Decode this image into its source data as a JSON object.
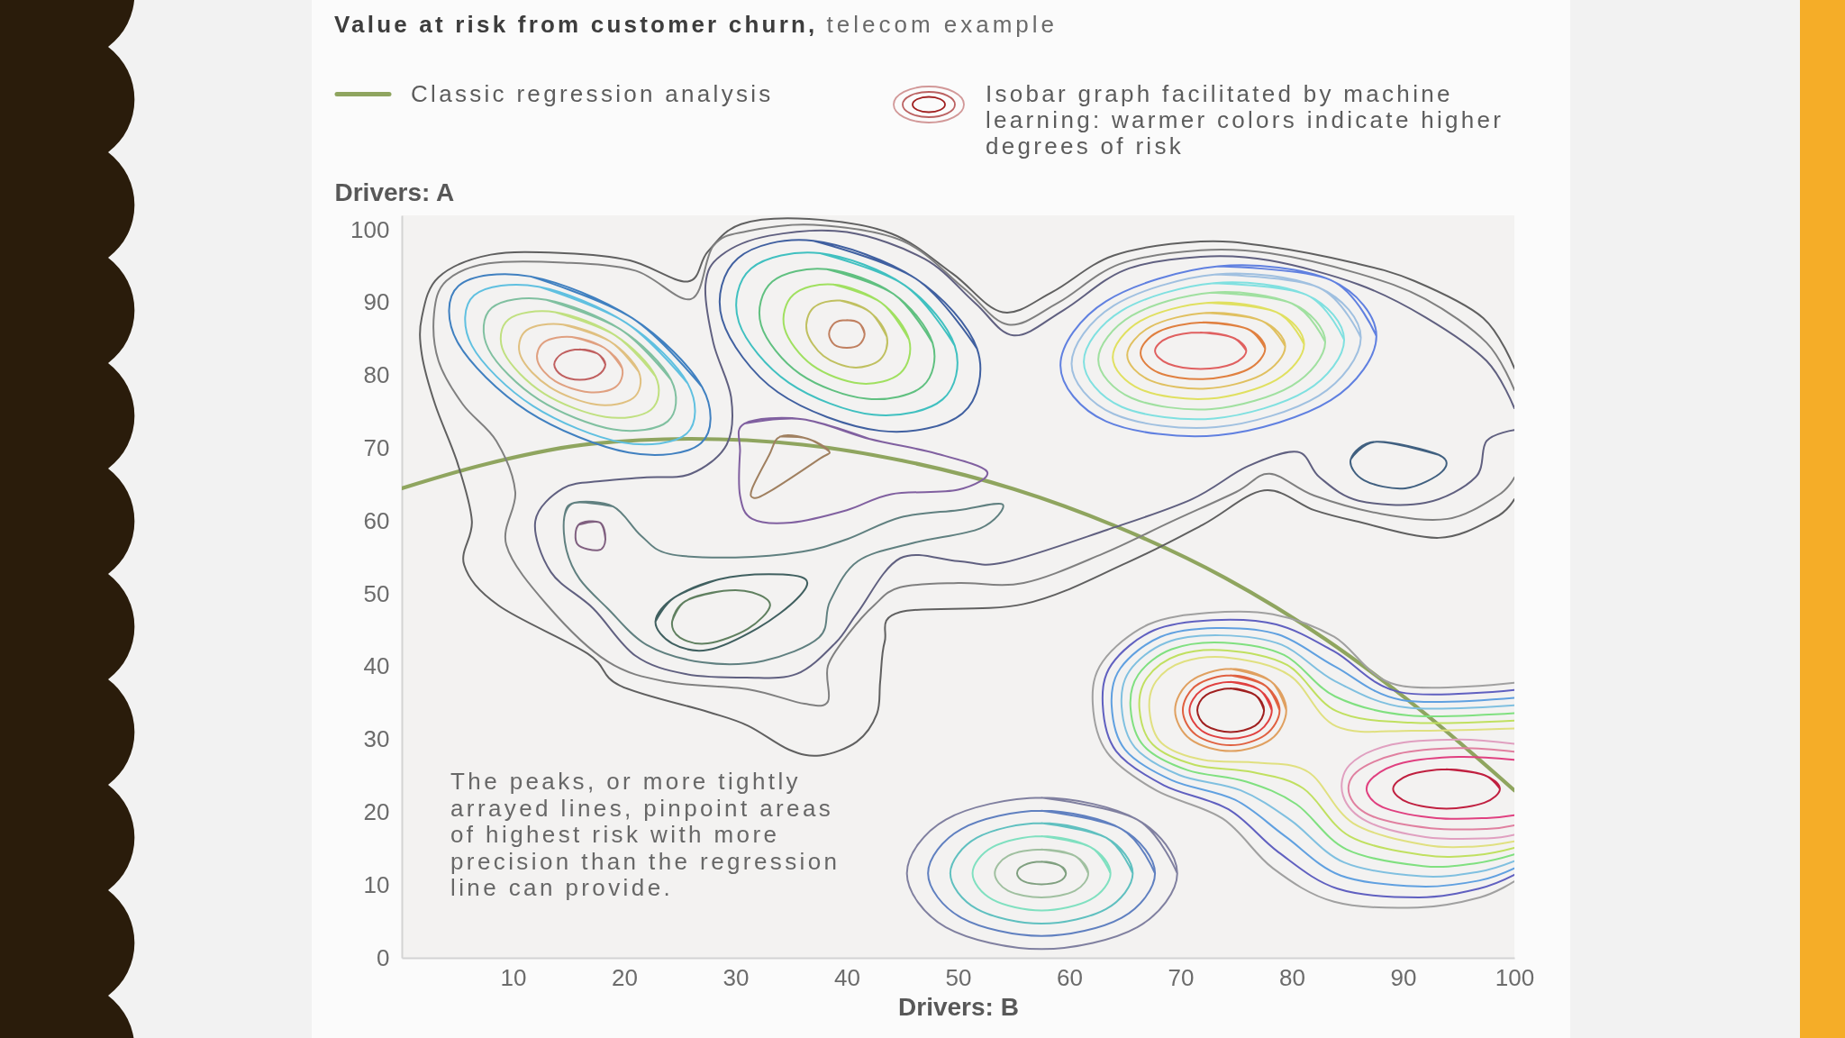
{
  "chart_data": {
    "type": "line",
    "title": "Value at risk from customer churn,",
    "subtitle": "telecom example",
    "xlabel": "Drivers: B",
    "ylabel": "Drivers: A",
    "annotations": [
      "The peaks, or more tightly arrayed lines, pinpoint areas of highest risk with more precision than the regression line can provide."
    ],
    "xlim": [
      0,
      100
    ],
    "ylim": [
      0,
      102
    ],
    "xticks": [
      10,
      20,
      30,
      40,
      50,
      60,
      70,
      80,
      90,
      100
    ],
    "yticks": [
      0,
      10,
      20,
      30,
      40,
      50,
      60,
      70,
      80,
      90,
      100
    ],
    "legend": "top",
    "series": [
      {
        "name": "Classic regression analysis",
        "color": "#8fa55f",
        "x": [
          0,
          8,
          17,
          26,
          36,
          45,
          55,
          64,
          74,
          83,
          92,
          100
        ],
        "values": [
          64.5,
          68,
          70.6,
          71.3,
          70.5,
          68.3,
          64.4,
          59.4,
          52.2,
          43.8,
          33.5,
          23
        ]
      },
      {
        "name": "Isobar graph facilitated by machine learning: warmer colors indicate higher degrees of risk",
        "color": "#a02020",
        "x": [
          77.5,
          76.7,
          74.5,
          72.3,
          71.5,
          72.3,
          74.5,
          76.7,
          77.5
        ],
        "values": [
          34,
          36.1,
          37,
          36.1,
          34,
          31.9,
          31,
          31.9,
          34
        ]
      },
      {
        "color": "#e04040",
        "x": [
          78.2,
          77.1,
          74.5,
          71.9,
          70.8,
          71.9,
          74.5,
          77.1,
          78.2
        ],
        "values": [
          34,
          36.8,
          37.9,
          36.8,
          34,
          31.2,
          30.1,
          31.2,
          34
        ]
      },
      {
        "color": "#e06040",
        "x": [
          78.9,
          77.6,
          74.5,
          71.4,
          70.2,
          71.4,
          74.5,
          77.6,
          78.9
        ],
        "values": [
          34,
          37.4,
          38.8,
          37.4,
          34,
          30.6,
          29.2,
          30.6,
          34
        ]
      },
      {
        "color": "#e0a060",
        "x": [
          79.5,
          78.1,
          74.5,
          70.9,
          69.5,
          70.9,
          74.5,
          78.1,
          79.5
        ],
        "values": [
          34,
          38,
          39.7,
          38,
          34,
          30,
          28.4,
          30,
          34
        ]
      },
      {
        "color": "#c02040",
        "x": [
          98.7,
          97.3,
          93.9,
          90.5,
          89.1,
          90.5,
          93.9,
          97.3,
          98.7
        ],
        "values": [
          23.2,
          25.1,
          25.9,
          25.1,
          23.2,
          21.3,
          20.5,
          21.3,
          23.2
        ]
      },
      {
        "color": "#e04080",
        "x": [
          100,
          95,
          90,
          87.3,
          86.8,
          88.5,
          93,
          97.5,
          100
        ],
        "values": [
          27.2,
          27.6,
          26.8,
          24.8,
          22.6,
          20.5,
          19.2,
          19.2,
          19.6
        ]
      },
      {
        "color": "#e080a0",
        "x": [
          100,
          95,
          89.5,
          85.8,
          85.2,
          87.3,
          92.5,
          97.5,
          100
        ],
        "values": [
          28.3,
          28.8,
          28,
          25.5,
          22.3,
          19.4,
          17.8,
          17.7,
          18.2
        ]
      },
      {
        "color": "#e0a0c0",
        "x": [
          100,
          95,
          89,
          85.2,
          84.6,
          86.8,
          92,
          97.5,
          100
        ],
        "values": [
          29.4,
          30,
          29.3,
          26.5,
          22.3,
          18.7,
          16.6,
          16.4,
          16.9
        ]
      },
      {
        "color": "#e0e080",
        "x": [
          100,
          91,
          84,
          79.8,
          74.5,
          70.3,
          67.8,
          67.2,
          68.3,
          72,
          77,
          81.5,
          85.5,
          92,
          96.5,
          100
        ],
        "values": [
          31.5,
          31.2,
          31.8,
          38.8,
          41.2,
          40.7,
          38,
          34,
          29.5,
          27.2,
          26.8,
          25.5,
          18.5,
          15.5,
          15.3,
          16
        ]
      },
      {
        "color": "#c0e060",
        "x": [
          100,
          90.7,
          84,
          79.6,
          74.2,
          69.8,
          67,
          66.3,
          67.5,
          71.3,
          76.5,
          81,
          85.2,
          91.9,
          96.6,
          100
        ],
        "values": [
          32.6,
          32.3,
          33.9,
          40.2,
          42.2,
          41.6,
          38.5,
          34.2,
          29.3,
          26.5,
          25.5,
          23.3,
          16.7,
          14.1,
          14.1,
          15.1
        ]
      },
      {
        "color": "#80e080",
        "x": [
          100,
          90.5,
          83.9,
          79.3,
          73.9,
          69.2,
          66.2,
          65.5,
          66.7,
          70.6,
          75.9,
          80.4,
          84.9,
          91.8,
          96.6,
          100
        ],
        "values": [
          33.6,
          33.3,
          35.9,
          41.6,
          43.3,
          42.4,
          38.9,
          34.3,
          29.1,
          25.8,
          24.2,
          21.1,
          14.9,
          12.6,
          13,
          14.2
        ]
      },
      {
        "color": "#80c0e0",
        "x": [
          100,
          90.2,
          83.9,
          79.1,
          73.6,
          68.7,
          65.4,
          64.7,
          65.9,
          69.9,
          75.4,
          79.9,
          84.7,
          91.7,
          96.7,
          100
        ],
        "values": [
          34.7,
          34.4,
          38,
          43,
          44.3,
          43.3,
          39.4,
          34.5,
          28.9,
          25.1,
          23,
          18.9,
          13.1,
          11.2,
          11.8,
          13.3
        ]
      },
      {
        "color": "#60a0e0",
        "x": [
          100,
          89.9,
          83.9,
          78.8,
          73.2,
          68.2,
          64.6,
          63.8,
          65,
          69.2,
          74.9,
          79.4,
          84.4,
          91.5,
          96.8,
          100
        ],
        "values": [
          35.7,
          35.4,
          40,
          44.4,
          45.3,
          44.1,
          39.8,
          34.7,
          28.6,
          24.4,
          21.7,
          16.7,
          11.3,
          9.8,
          10.6,
          12.3
        ]
      },
      {
        "color": "#6060c0",
        "x": [
          100,
          89.7,
          83.8,
          78.6,
          72.9,
          67.6,
          63.8,
          63,
          64.2,
          68.5,
          74.3,
          78.8,
          84.1,
          91.4,
          96.8,
          100
        ],
        "values": [
          36.8,
          36.5,
          42.1,
          45.8,
          46.4,
          45,
          40.3,
          34.8,
          28.4,
          23.7,
          20.4,
          14.5,
          9.5,
          8.3,
          9.5,
          11.4
        ]
      },
      {
        "color": "#a0a0a0",
        "x": [
          100,
          89.4,
          83.8,
          78.3,
          72.6,
          67.1,
          63,
          62.1,
          63.4,
          67.8,
          73.8,
          78.3,
          83.8,
          91.3,
          96.9,
          100
        ],
        "values": [
          37.8,
          37.5,
          44.1,
          47.2,
          47.4,
          45.8,
          40.7,
          35,
          28.2,
          23,
          19.1,
          12.3,
          7.7,
          6.9,
          8.3,
          10.5
        ]
      },
      {
        "color": "#80a080",
        "x": [
          59.7,
          59.1,
          57.5,
          55.9,
          55.3,
          55.9,
          57.5,
          59.1,
          59.7
        ],
        "values": [
          11.6,
          12.7,
          13.2,
          12.7,
          11.6,
          10.5,
          10.1,
          10.5,
          11.6
        ]
      },
      {
        "color": "#a0c0a0",
        "x": [
          61.7,
          60.5,
          57.5,
          54.5,
          53.3,
          54.5,
          57.5,
          60.5,
          61.7
        ],
        "values": [
          11.6,
          14,
          14.9,
          14,
          11.6,
          9.2,
          8.3,
          9.2,
          11.6
        ]
      },
      {
        "color": "#80e0c0",
        "x": [
          63.7,
          61.9,
          57.5,
          53.1,
          51.3,
          53.1,
          57.5,
          61.9,
          63.7
        ],
        "values": [
          11.6,
          15.2,
          16.7,
          15.2,
          11.6,
          8,
          6.5,
          8,
          11.6
        ]
      },
      {
        "color": "#60c0c0",
        "x": [
          65.7,
          63.3,
          57.5,
          51.7,
          49.3,
          51.7,
          57.5,
          63.3,
          65.7
        ],
        "values": [
          11.6,
          16.5,
          18.5,
          16.5,
          11.6,
          6.7,
          4.7,
          6.7,
          11.6
        ]
      },
      {
        "color": "#6080c0",
        "x": [
          67.7,
          64.7,
          57.5,
          50.3,
          47.3,
          50.3,
          57.5,
          64.7,
          67.7
        ],
        "values": [
          11.6,
          17.7,
          20.2,
          17.7,
          11.6,
          5.5,
          3,
          5.5,
          11.6
        ]
      },
      {
        "color": "#8080a0",
        "x": [
          69.7,
          66.1,
          57.5,
          48.9,
          45.4,
          48.9,
          57.5,
          66.1,
          69.7
        ],
        "values": [
          11.6,
          19,
          22,
          19,
          11.6,
          4.2,
          1.2,
          4.2,
          11.6
        ]
      },
      {
        "color": "#c06060",
        "x": [
          18.3,
          17.6,
          16,
          14.4,
          13.7,
          14.4,
          16,
          17.6,
          18.3
        ],
        "values": [
          81.5,
          83,
          83.6,
          83,
          81.5,
          80,
          79.4,
          80,
          81.5
        ]
      },
      {
        "color": "#e0a080",
        "x": [
          19.8,
          18.2,
          15.3,
          12.8,
          12.2,
          13.8,
          16.8,
          19.2,
          19.8
        ],
        "values": [
          81,
          83.8,
          85.3,
          84.6,
          82,
          79.2,
          77.7,
          78.4,
          81
        ]
      },
      {
        "color": "#e0c080",
        "x": [
          21.3,
          18.7,
          14.5,
          11.2,
          10.7,
          13.3,
          17.5,
          20.8,
          21.3
        ],
        "values": [
          80.5,
          84.7,
          87,
          86.2,
          82.6,
          78.4,
          76,
          76.9,
          80.5
        ]
      },
      {
        "color": "#c0e080",
        "x": [
          22.8,
          19.2,
          13.8,
          9.6,
          9.2,
          12.8,
          18.3,
          22.4,
          22.8
        ],
        "values": [
          79.9,
          85.5,
          88.7,
          87.7,
          83.1,
          77.5,
          74.3,
          75.3,
          79.9
        ]
      },
      {
        "color": "#80c0a0",
        "x": [
          24.2,
          19.7,
          13,
          8.1,
          7.8,
          12.3,
          19,
          23.9,
          24.2
        ],
        "values": [
          79.4,
          86.3,
          90.4,
          89.3,
          83.6,
          76.7,
          72.6,
          73.7,
          79.4
        ]
      },
      {
        "color": "#60c0e0",
        "x": [
          25.7,
          20.2,
          12.3,
          6.5,
          6.3,
          11.8,
          19.8,
          25.6,
          25.7
        ],
        "values": [
          78.9,
          87.2,
          92.2,
          91,
          84.1,
          75.8,
          70.8,
          72,
          78.9
        ]
      },
      {
        "color": "#4080c0",
        "x": [
          27,
          20.7,
          11.6,
          5.1,
          5,
          11.3,
          20.4,
          26.9,
          27
        ],
        "values": [
          78.4,
          87.9,
          93.6,
          92.3,
          84.6,
          75.1,
          69.4,
          70.7,
          78.4
        ]
      },
      {
        "color": "#c08060",
        "x": [
          41.6,
          41.1,
          40,
          38.9,
          38.4,
          38.9,
          40,
          41.1,
          41.6
        ],
        "values": [
          85.7,
          87.2,
          87.6,
          87.2,
          85.7,
          84.2,
          83.8,
          84.2,
          85.7
        ]
      },
      {
        "color": "#c0c060",
        "x": [
          43.6,
          42.1,
          39.4,
          37,
          36.4,
          37.9,
          40.6,
          43,
          43.6
        ],
        "values": [
          85.3,
          88.7,
          90.3,
          89.3,
          86.1,
          82.7,
          81.1,
          82.2,
          85.3
        ]
      },
      {
        "color": "#a0e060",
        "x": [
          45.6,
          43.1,
          38.8,
          35.2,
          34.4,
          36.9,
          41.2,
          44.8,
          45.6
        ],
        "values": [
          84.9,
          90,
          92.5,
          91.1,
          86.5,
          81.4,
          78.9,
          80.3,
          84.9
        ]
      },
      {
        "color": "#60c080",
        "x": [
          47.7,
          44.2,
          38.2,
          33.3,
          32.3,
          35.8,
          41.8,
          46.8,
          47.7
        ],
        "values": [
          84.5,
          91.2,
          94.6,
          92.9,
          86.9,
          80.2,
          76.8,
          78.5,
          84.5
        ]
      },
      {
        "color": "#40c0c0",
        "x": [
          49.7,
          45.2,
          37.6,
          31.4,
          30.3,
          34.8,
          42.4,
          48.6,
          49.7
        ],
        "values": [
          84.1,
          92.4,
          96.8,
          94.7,
          87.3,
          79,
          74.6,
          76.7,
          84.1
        ]
      },
      {
        "color": "#4060a0",
        "x": [
          51.7,
          46.2,
          37,
          30.2,
          28.8,
          33.8,
          43,
          50.4,
          51.7
        ],
        "values": [
          83.7,
          93.3,
          98.5,
          96.1,
          87.7,
          77.7,
          72.4,
          74.8,
          83.7
        ]
      },
      {
        "color": "#e06060",
        "x": [
          75.9,
          74.7,
          71.8,
          68.9,
          67.7,
          68.9,
          71.8,
          74.7,
          75.9
        ],
        "values": [
          83.4,
          85.2,
          85.9,
          85.2,
          83.4,
          81.6,
          80.9,
          81.6,
          83.4
        ]
      },
      {
        "color": "#e08040",
        "x": [
          77.6,
          76,
          72,
          68,
          66.4,
          68,
          72,
          76,
          77.6
        ],
        "values": [
          83.7,
          86.4,
          87.3,
          86,
          83.1,
          80.4,
          79.5,
          80.8,
          83.7
        ]
      },
      {
        "color": "#e0c060",
        "x": [
          79.4,
          77.3,
          72.3,
          67.3,
          65.2,
          67.3,
          72.3,
          77.3,
          79.4
        ],
        "values": [
          84,
          87.5,
          88.6,
          86.7,
          82.8,
          79.3,
          78.2,
          80.1,
          84
        ]
      },
      {
        "color": "#e0e060",
        "x": [
          81.1,
          78.6,
          72.5,
          66.4,
          63.9,
          66.4,
          72.5,
          78.6,
          81.1
        ],
        "values": [
          84.3,
          88.7,
          90,
          87.5,
          82.5,
          78.1,
          76.8,
          79.4,
          84.3
        ]
      },
      {
        "color": "#a0e0a0",
        "x": [
          83,
          80,
          72.8,
          65.6,
          62.6,
          65.6,
          72.8,
          80,
          83
        ],
        "values": [
          84.6,
          89.9,
          91.4,
          88.2,
          82.2,
          76.9,
          75.4,
          78.6,
          84.6
        ]
      },
      {
        "color": "#80e0e0",
        "x": [
          84.7,
          81.3,
          73,
          64.7,
          61.3,
          64.7,
          73,
          81.3,
          84.7
        ],
        "values": [
          84.9,
          91.1,
          92.7,
          88.9,
          81.9,
          75.7,
          74.1,
          77.9,
          84.9
        ]
      },
      {
        "color": "#a0c0e0",
        "x": [
          86.2,
          82.4,
          73.2,
          64,
          60.2,
          64,
          73.2,
          82.4,
          86.2
        ],
        "values": [
          85.2,
          92.1,
          93.9,
          89.6,
          81.6,
          74.7,
          72.9,
          77.2,
          85.2
        ]
      },
      {
        "color": "#6080e0",
        "x": [
          87.6,
          83.5,
          73.4,
          63.3,
          59.2,
          63.3,
          73.4,
          83.5,
          87.6
        ],
        "values": [
          85.4,
          93.1,
          95,
          90.2,
          81.4,
          73.7,
          71.8,
          76.6,
          85.4
        ]
      },
      {
        "color": "#606060",
        "x": [
          100,
          97.2,
          91,
          85.5,
          78,
          71.8,
          64,
          58.5,
          54,
          49.5,
          44,
          36.6,
          30.5,
          27.5,
          25.7,
          20.5,
          14.6,
          8,
          3.3,
          1.8,
          1.8,
          3,
          5,
          6.3,
          5.6,
          8.7,
          16.7,
          19.6,
          27.5,
          31.1,
          34.8,
          37.6,
          40.9,
          42.7,
          43,
          43.4,
          44.8,
          55.9,
          65.2,
          72,
          77.5,
          82,
          85.7,
          93.2,
          98.3,
          100
        ],
        "values": [
          81,
          87.9,
          93,
          95.5,
          97.7,
          98.4,
          96.5,
          91.5,
          88.7,
          94,
          99.5,
          101.5,
          100.8,
          97,
          92.9,
          95.8,
          96.8,
          96.6,
          93.5,
          88,
          82.9,
          76,
          68,
          60,
          54,
          48.4,
          41.8,
          37.4,
          33.8,
          31.9,
          28.6,
          27.8,
          29.7,
          33.5,
          38,
          43.4,
          47.5,
          48.6,
          54.3,
          59.5,
          64.2,
          61.5,
          60,
          57.7,
          60.5,
          63
        ]
      },
      {
        "color": "#808080",
        "x": [
          100,
          97.5,
          92,
          86,
          78,
          71.8,
          64.5,
          59,
          54.5,
          50.5,
          45,
          37,
          31,
          28,
          26,
          21,
          14.6,
          7.8,
          4,
          2.9,
          3.3,
          5.5,
          8.5,
          10.2,
          9.4,
          13.1,
          18.5,
          23.9,
          31.1,
          36.2,
          38.3,
          38.3,
          40.2,
          42.5,
          44.8,
          50,
          55.9,
          63,
          69,
          75,
          78,
          82,
          88,
          94,
          98.5,
          100
        ],
        "values": [
          78,
          84.5,
          90.5,
          94,
          96.8,
          97.2,
          95.3,
          90,
          87,
          92,
          98.5,
          100.7,
          99.8,
          97.8,
          90.5,
          94.4,
          95.5,
          95.4,
          93,
          88.5,
          82,
          76,
          71,
          64,
          56.7,
          48.4,
          40.7,
          37.9,
          36.9,
          34.9,
          35.2,
          40.1,
          44.6,
          48.5,
          50.9,
          51.5,
          51.5,
          55.5,
          59.8,
          64,
          66.5,
          63.5,
          61,
          60.3,
          63.5,
          66
        ]
      },
      {
        "color": "#606080",
        "x": [
          100,
          97.5,
          92,
          86,
          78,
          71.8,
          65,
          59.5,
          55,
          51.5,
          47,
          40,
          33,
          28.7,
          27.3,
          28,
          29.6,
          29.2,
          26,
          22,
          18,
          14.5,
          12,
          13.4,
          17.2,
          21,
          25.5,
          31,
          35.5,
          39,
          41,
          44.8,
          50,
          54.1,
          63.4,
          71,
          76,
          80.5,
          82.5,
          86,
          92,
          96.5,
          97.5,
          100
        ],
        "values": [
          75.5,
          82,
          88,
          92.5,
          95.8,
          96.3,
          94.5,
          89,
          85.5,
          90,
          96,
          99.7,
          99.2,
          96.5,
          92.5,
          84.5,
          77,
          70.5,
          66.5,
          66,
          65.5,
          64.5,
          60,
          53,
          48,
          41.5,
          39,
          38.5,
          39,
          43.3,
          47.5,
          54.9,
          54.5,
          54.3,
          58.8,
          63,
          67.5,
          69.5,
          66,
          62.8,
          62.5,
          66,
          71,
          72.5
        ]
      },
      {
        "color": "#608080",
        "x": [
          14.6,
          15.5,
          19,
          21.5,
          24,
          30,
          36,
          40,
          44.8,
          50,
          54,
          52,
          46,
          41,
          38.5,
          37.5,
          32.5,
          27,
          22,
          18.5,
          16,
          14.8,
          14.6
        ],
        "values": [
          60.5,
          62.5,
          62,
          58,
          55.5,
          55,
          55.8,
          57.5,
          60.5,
          61.5,
          62.3,
          59,
          57,
          54.5,
          49,
          44,
          40.8,
          40.6,
          43,
          48,
          52,
          56,
          60.5
        ]
      },
      {
        "color": "#806080",
        "x": [
          15.9,
          17.8,
          18.3,
          17.7,
          15.8,
          15.9
        ],
        "values": [
          59.5,
          59.8,
          57.5,
          56,
          56.8,
          59.5
        ]
      },
      {
        "color": "#608060",
        "x": [
          24.3,
          25.5,
          28.9,
          31.5,
          33.1,
          31.1,
          27.5,
          25,
          24.3
        ],
        "values": [
          46.2,
          49,
          50.4,
          50.2,
          48.4,
          45.2,
          43.2,
          44,
          46.2
        ]
      },
      {
        "color": "#406060",
        "x": [
          22.8,
          24.5,
          28.5,
          33,
          36.3,
          35.5,
          32,
          27.5,
          24.3,
          22.8
        ],
        "values": [
          46.2,
          49.5,
          52,
          52.7,
          52,
          49.3,
          45.3,
          42.3,
          43.2,
          46.2
        ]
      },
      {
        "color": "#a08060",
        "x": [
          34,
          36.5,
          38.4,
          37.5,
          33,
          31.6,
          31.5,
          33,
          34
        ],
        "values": [
          71.6,
          71.3,
          69.6,
          68.5,
          64,
          63.2,
          64.5,
          69,
          71.6
        ]
      },
      {
        "color": "#8060a0",
        "x": [
          30.8,
          36,
          42,
          48,
          52.6,
          50,
          44,
          40,
          35,
          31.5,
          30.4,
          30.4,
          30.8
        ],
        "values": [
          73.4,
          74,
          71.3,
          69.3,
          66.8,
          64.3,
          63.7,
          61.5,
          59.8,
          60.3,
          63.5,
          69.5,
          73.4
        ]
      },
      {
        "color": "#406080",
        "x": [
          85.3,
          87.6,
          93.2,
          93.5,
          90.2,
          86.5,
          85.3
        ],
        "values": [
          68.5,
          70.9,
          69.1,
          66.8,
          64.5,
          65.6,
          68.5
        ]
      }
    ]
  }
}
